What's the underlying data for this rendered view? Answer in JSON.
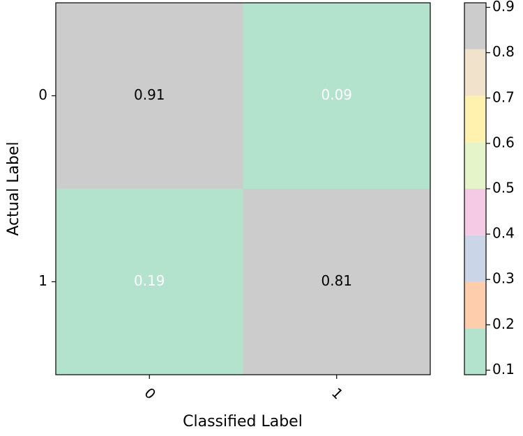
{
  "chart_data": {
    "type": "heatmap",
    "x_label": "Classified Label",
    "y_label": "Actual Label",
    "x_categories": [
      "0",
      "1"
    ],
    "y_categories": [
      "0",
      "1"
    ],
    "values": [
      [
        0.91,
        0.09
      ],
      [
        0.19,
        0.81
      ]
    ],
    "colormap": [
      "#b3e2cd",
      "#fdcdac",
      "#cbd5e8",
      "#f4cae4",
      "#e6f5c9",
      "#fff2ae",
      "#f1e2cc",
      "#cccccc"
    ],
    "colorbar_lim": [
      0.09,
      0.91
    ],
    "colorbar_ticks": [
      0.1,
      0.2,
      0.3,
      0.4,
      0.5,
      0.6,
      0.7,
      0.8,
      0.9
    ]
  }
}
